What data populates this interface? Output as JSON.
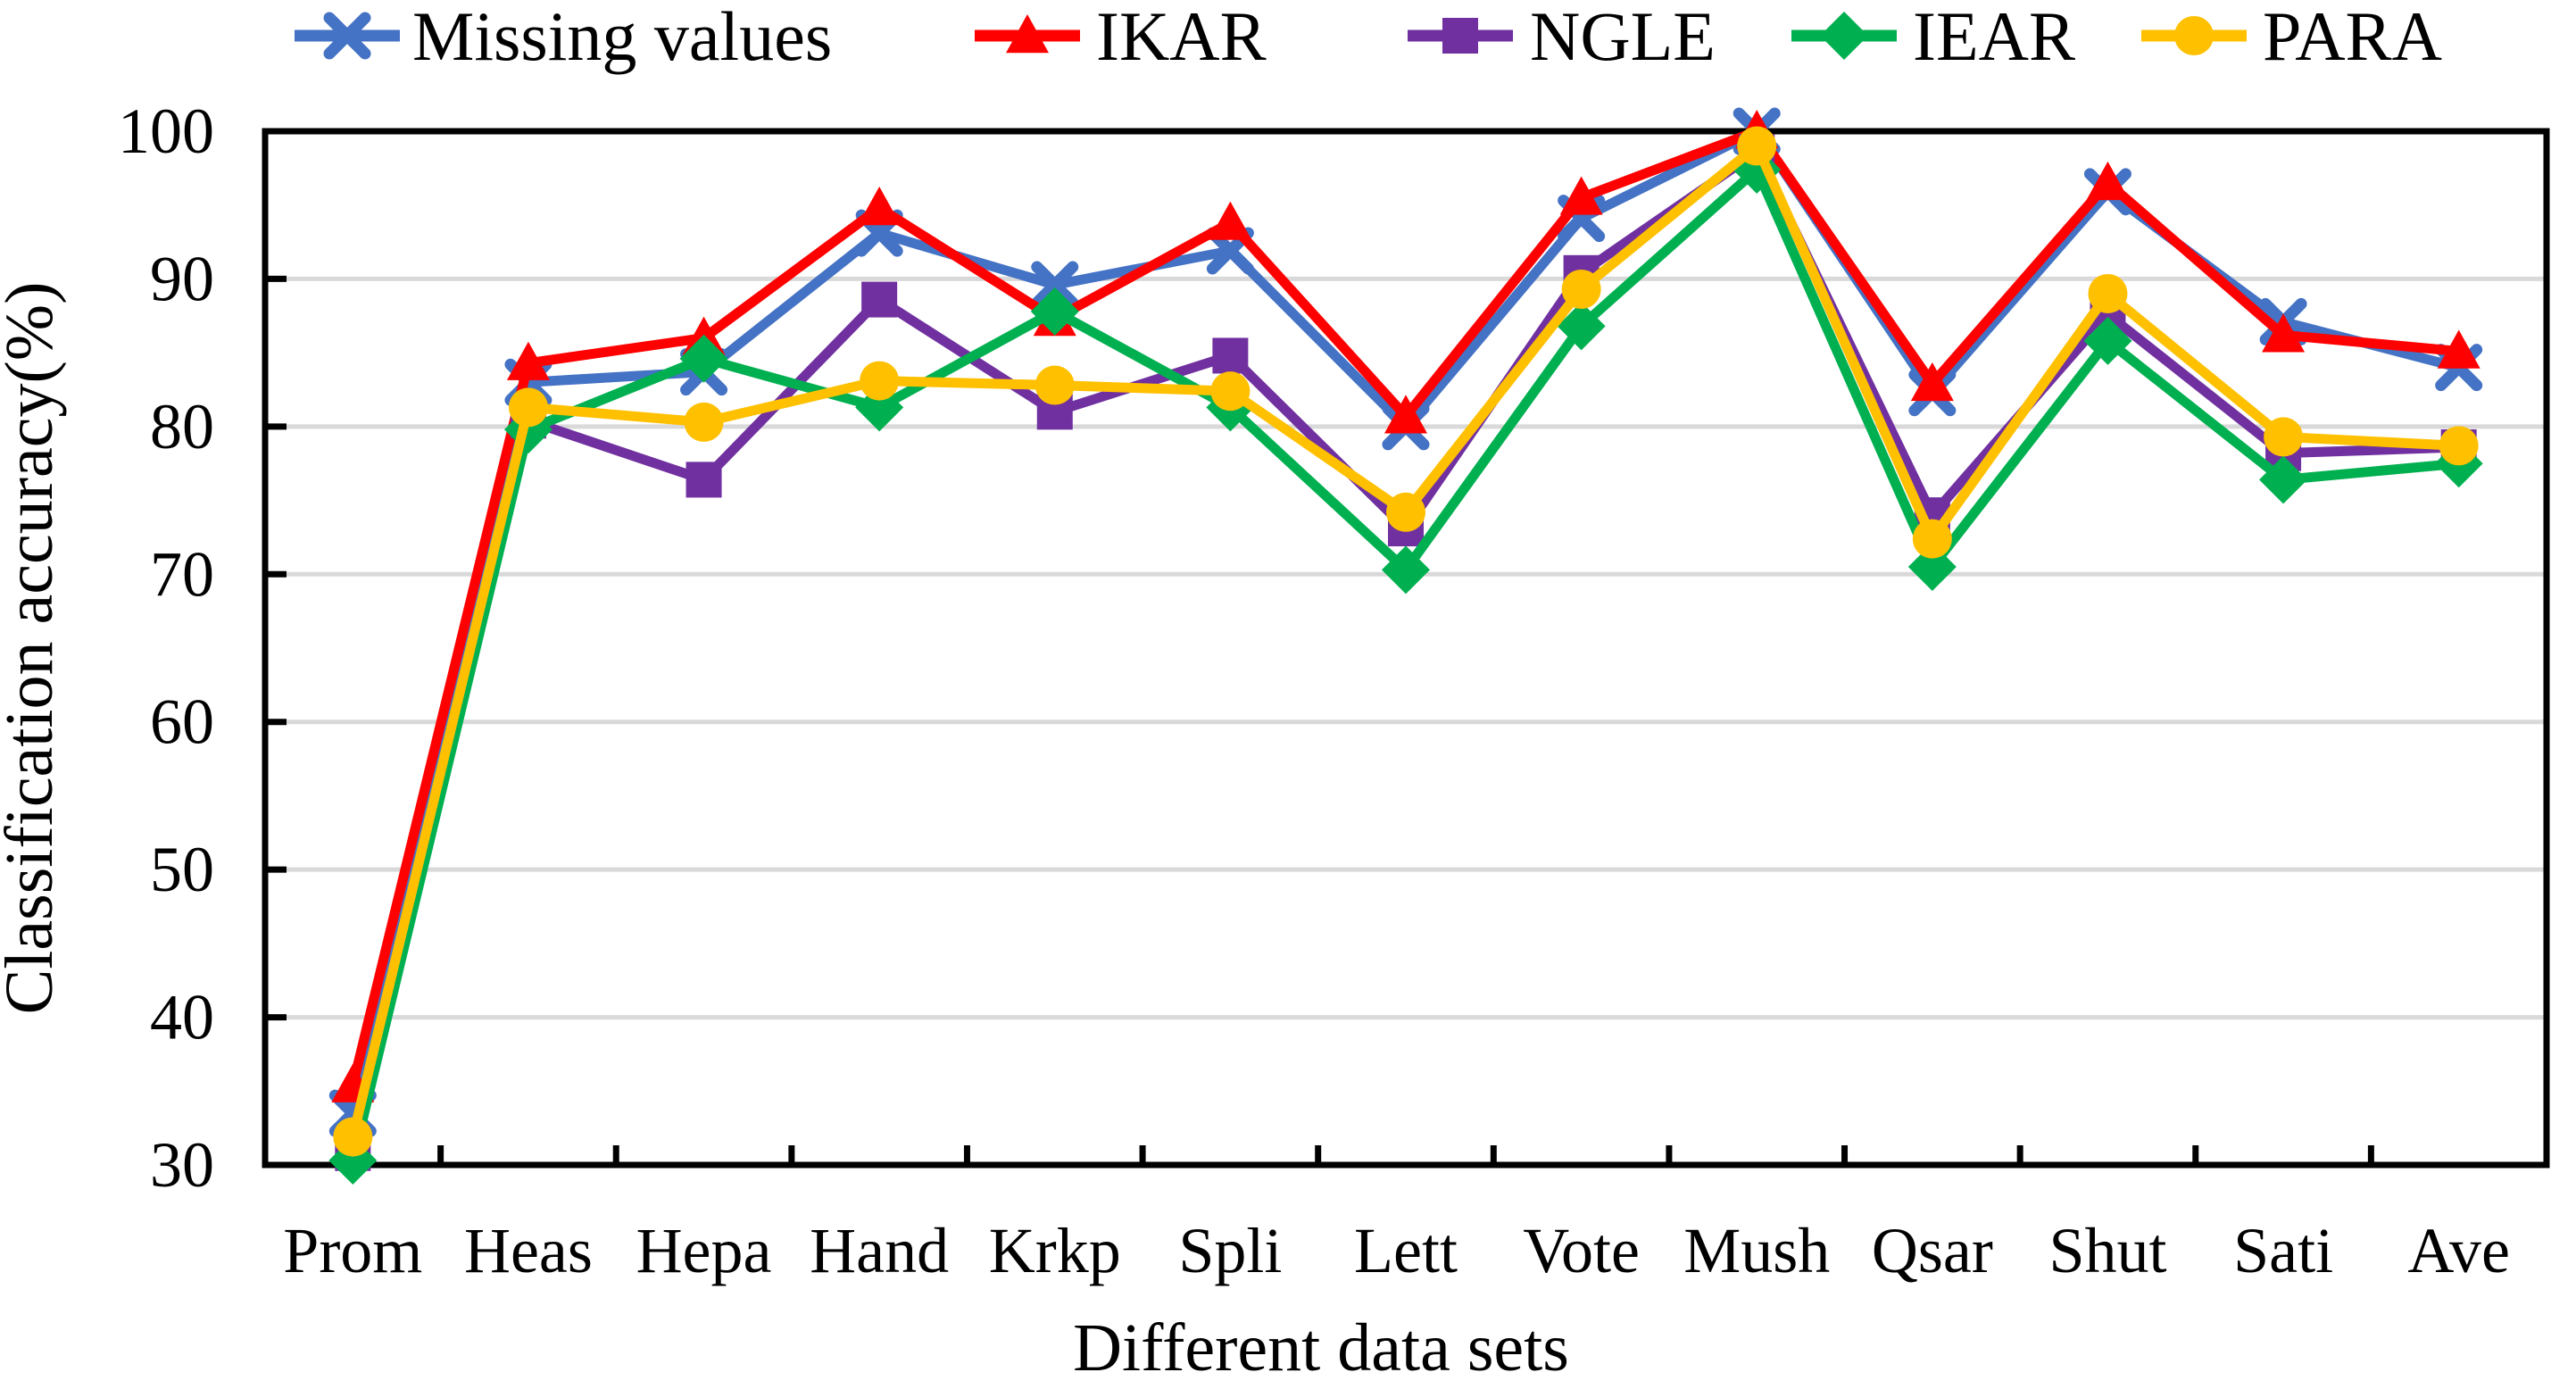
{
  "chart_data": {
    "type": "line",
    "title": "",
    "xlabel": "Different data sets",
    "ylabel": "Classification accuracy(%)",
    "ylim": [
      30,
      100
    ],
    "yticks": [
      30,
      40,
      50,
      60,
      70,
      80,
      90,
      100
    ],
    "grid": true,
    "legend_position": "top",
    "categories": [
      "Prom",
      "Heas",
      "Hepa",
      "Hand",
      "Krkp",
      "Spli",
      "Lett",
      "Vote",
      "Mush",
      "Qsar",
      "Shut",
      "Sati",
      "Ave"
    ],
    "series": [
      {
        "name": "Missing values",
        "color": "#4472C4",
        "marker": "x",
        "values": [
          33.5,
          83.0,
          83.7,
          93.1,
          89.6,
          91.9,
          80.0,
          94.1,
          100.0,
          82.3,
          95.9,
          87.1,
          84.0
        ]
      },
      {
        "name": "IKAR",
        "color": "#FF0000",
        "marker": "triangle",
        "values": [
          35.4,
          84.3,
          86.0,
          94.8,
          87.3,
          93.8,
          80.7,
          95.5,
          100.0,
          82.9,
          96.5,
          86.2,
          85.1
        ]
      },
      {
        "name": "NGLE",
        "color": "#7030A0",
        "marker": "square",
        "values": [
          30.8,
          80.4,
          76.4,
          88.6,
          81.0,
          84.8,
          73.1,
          90.4,
          98.6,
          74.0,
          87.6,
          78.2,
          78.6
        ]
      },
      {
        "name": "IEAR",
        "color": "#00B050",
        "marker": "diamond",
        "values": [
          30.3,
          79.8,
          84.6,
          81.3,
          87.8,
          81.3,
          70.3,
          86.8,
          97.4,
          70.5,
          85.8,
          76.4,
          77.5
        ]
      },
      {
        "name": "PARA",
        "color": "#FFC000",
        "marker": "circle",
        "values": [
          31.9,
          81.3,
          80.3,
          83.1,
          82.8,
          82.4,
          74.2,
          89.3,
          99.0,
          72.4,
          89.0,
          79.3,
          78.7
        ]
      }
    ],
    "colors": {
      "gridline": "#D9D9D9",
      "axis": "#000000",
      "background": "#FFFFFF"
    }
  }
}
